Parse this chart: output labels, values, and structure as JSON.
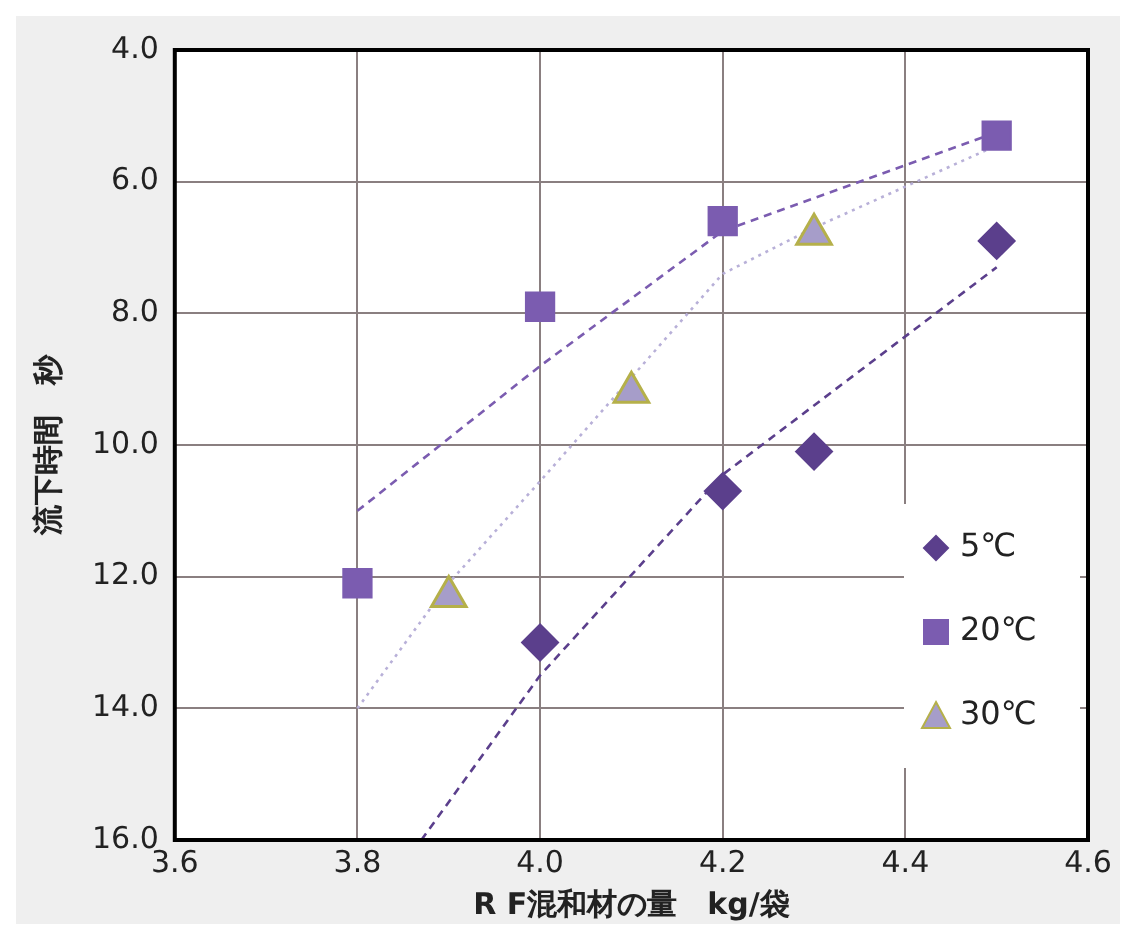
{
  "chart_data": {
    "type": "scatter",
    "xlabel": "R F混和材の量　kg/袋",
    "ylabel": "流下時間　秒",
    "xlim": [
      3.6,
      4.6
    ],
    "xticks": [
      3.6,
      3.8,
      {
        "value": 4,
        "label": "4.0"
      },
      4.2,
      4.4,
      4.6
    ],
    "ylim": [
      16,
      4
    ],
    "yticks": [
      {
        "value": 4,
        "label": "4.0"
      },
      {
        "value": 6,
        "label": "6.0"
      },
      {
        "value": 8,
        "label": "8.0"
      },
      {
        "value": 10,
        "label": "10.0"
      },
      {
        "value": 12,
        "label": "12.0"
      },
      {
        "value": 14,
        "label": "14.0"
      },
      {
        "value": 16,
        "label": "16.0"
      }
    ],
    "grid": true,
    "legend": "right",
    "series": [
      {
        "name": "5℃",
        "color": "#5b3f8c",
        "marker": "diamond",
        "x": [
          4.0,
          4.2,
          4.3,
          4.5
        ],
        "values": [
          13.0,
          10.7,
          10.1,
          6.9
        ]
      },
      {
        "name": "20℃",
        "color": "#7b5cb0",
        "marker": "square",
        "x": [
          3.8,
          4.0,
          4.2,
          4.5
        ],
        "values": [
          12.1,
          7.9,
          6.6,
          5.3
        ]
      },
      {
        "name": "30℃",
        "color": "#a69dc9",
        "marker": "triangle",
        "x": [
          3.9,
          4.1,
          4.3
        ],
        "values": [
          12.3,
          9.2,
          6.8
        ]
      },
      {
        "type": "line",
        "color": "#5b3f8c",
        "marker": "none",
        "line_style": "dashed",
        "x": [
          3.87,
          4.0,
          4.2,
          4.3,
          4.5
        ],
        "values": [
          16.0,
          13.5,
          10.45,
          9.4,
          7.3
        ]
      },
      {
        "type": "line",
        "color": "#7b5cb0",
        "marker": "none",
        "line_style": "dashed",
        "x": [
          3.8,
          4.0,
          4.2,
          4.5
        ],
        "values": [
          11.0,
          8.8,
          6.75,
          5.25
        ]
      },
      {
        "type": "line",
        "color": "#b8b0d8",
        "marker": "none",
        "line_style": "dotted",
        "x": [
          3.8,
          3.9,
          4.0,
          4.2,
          4.3,
          4.5
        ],
        "values": [
          14.0,
          12.1,
          10.55,
          7.4,
          6.7,
          5.45
        ]
      }
    ]
  }
}
